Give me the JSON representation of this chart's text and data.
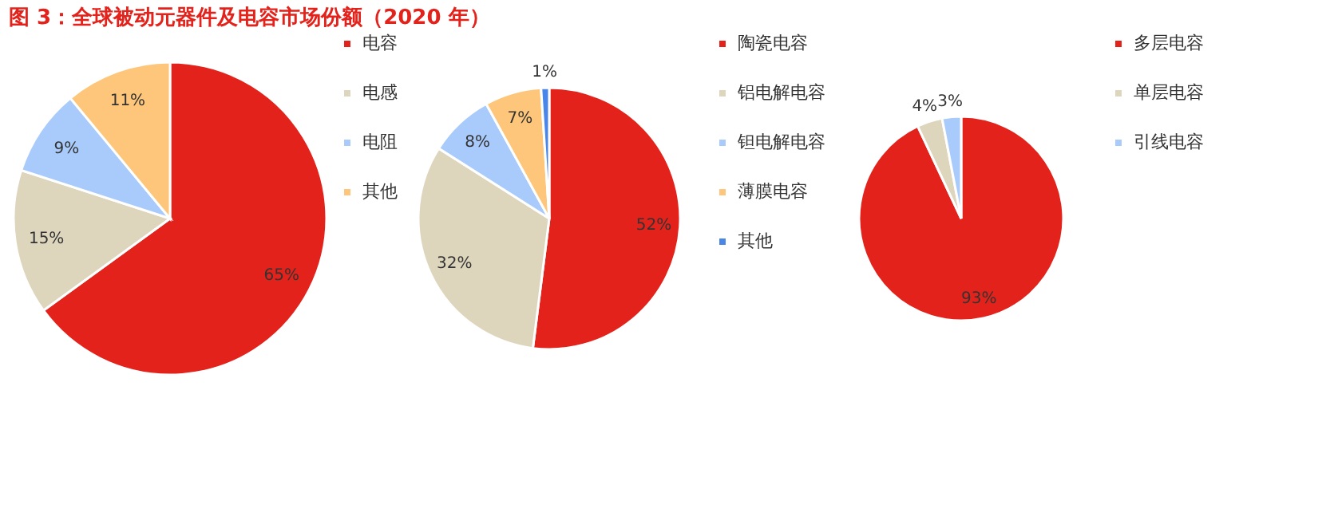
{
  "chart_data": [
    {
      "type": "pie",
      "title": "图 3：全球被动元器件及电容市场份额（2020 年）",
      "categories": [
        "电容",
        "电感",
        "电阻",
        "其他"
      ],
      "values": [
        65,
        15,
        9,
        11
      ],
      "colors": [
        "#e3231b",
        "#ded5bd",
        "#a9cbfb",
        "#fec67a"
      ],
      "value_labels": [
        "65%",
        "15%",
        "9%",
        "11%"
      ],
      "legend": "right"
    },
    {
      "type": "pie",
      "categories": [
        "陶瓷电容",
        "铝电解电容",
        "钽电解电容",
        "薄膜电容",
        "其他"
      ],
      "values": [
        52,
        32,
        8,
        7,
        1
      ],
      "colors": [
        "#e3231b",
        "#ded5bd",
        "#a9cbfb",
        "#fec67a",
        "#4a86e8"
      ],
      "value_labels": [
        "52%",
        "32%",
        "8%",
        "7%",
        "1%"
      ],
      "legend": "right"
    },
    {
      "type": "pie",
      "categories": [
        "多层电容",
        "单层电容",
        "引线电容"
      ],
      "values": [
        93,
        4,
        3
      ],
      "colors": [
        "#e3231b",
        "#ded5bd",
        "#a9cbfb"
      ],
      "value_labels": [
        "93%",
        "4%",
        "3%"
      ],
      "legend": "right"
    }
  ]
}
